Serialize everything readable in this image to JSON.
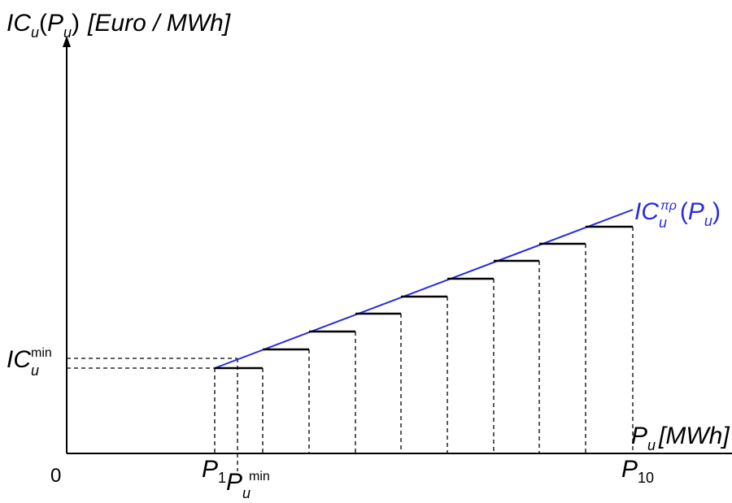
{
  "y_axis_label": {
    "main": "IC",
    "sub": "u",
    "paren_open": "(",
    "paren_var": "P",
    "paren_sub": "u",
    "paren_close": ")",
    "unit": "[Euro / MWh]"
  },
  "x_axis_label": {
    "main": "P",
    "sub": "u",
    "unit": "[MWh]"
  },
  "origin_label": "0",
  "ic_min_label": {
    "main": "IC",
    "sub": "u",
    "sup": "min"
  },
  "p1_label": {
    "main": "P",
    "sub": "1"
  },
  "pumin_label": {
    "main": "P",
    "sub": "u",
    "sup": "min"
  },
  "p10_label": {
    "main": "P",
    "sub": "10"
  },
  "curve_label": {
    "main": "IC",
    "sub": "u",
    "sup": "πρ",
    "paren_open": "(",
    "paren_var": "P",
    "paren_sub": "u",
    "paren_close": ")"
  },
  "colors": {
    "curve": "#2b2bdc",
    "axes": "#000000",
    "steps": "#000000",
    "guides": "#000000"
  }
}
